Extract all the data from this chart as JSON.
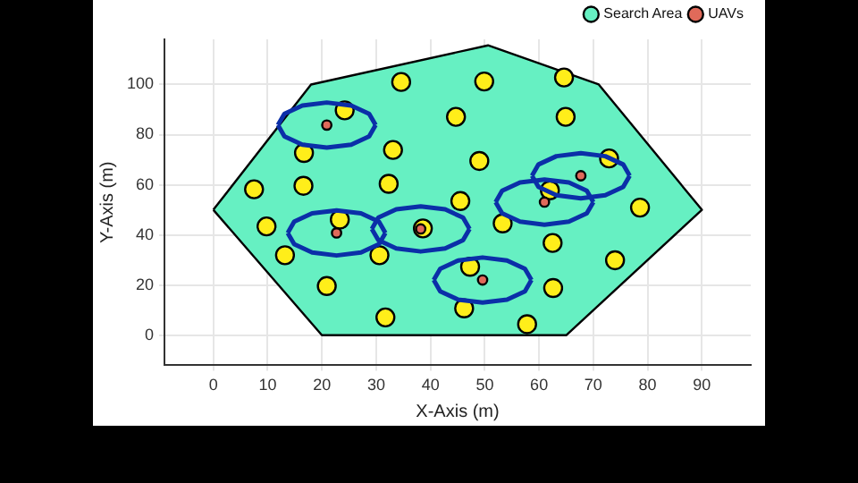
{
  "chart_data": {
    "type": "scatter",
    "xlabel": "X-Axis (m)",
    "ylabel": "Y-Axis (m)",
    "xlim": [
      -9,
      99
    ],
    "ylim": [
      -12,
      118
    ],
    "xticks": [
      0,
      10,
      20,
      30,
      40,
      50,
      60,
      70,
      80,
      90
    ],
    "yticks": [
      0,
      20,
      40,
      60,
      80,
      100
    ],
    "grid": true,
    "legend": "top right",
    "series": [
      {
        "name": "Search Area",
        "type": "area",
        "marker": "none",
        "color": "#66f0c2",
        "x": [
          0,
          20,
          65,
          90,
          71,
          50.6,
          18,
          0
        ],
        "values": [
          50,
          0,
          0,
          50,
          100,
          115.6,
          100,
          50
        ]
      },
      {
        "type": "scatter",
        "marker": "circle",
        "color": "#ffee1a",
        "x": [
          34.6,
          49.9,
          64.6,
          24.2,
          44.7,
          64.9,
          33.1,
          16.7,
          49.0,
          72.9,
          7.5,
          16.6,
          32.3,
          62.0,
          45.5,
          78.6,
          23.3,
          9.8,
          53.3,
          38.6,
          62.5,
          13.2,
          30.6,
          74.0,
          47.3,
          20.9,
          62.6,
          31.7,
          46.2,
          57.8
        ],
        "values": [
          101,
          101.2,
          102.8,
          89.7,
          87.1,
          87.1,
          73.9,
          72.7,
          69.5,
          70.5,
          58.2,
          59.6,
          60.4,
          57.8,
          53.5,
          50.9,
          46.1,
          43.4,
          44.6,
          42.6,
          36.8,
          31.9,
          31.9,
          29.9,
          27.3,
          19.6,
          18.8,
          7.1,
          10.7,
          4.4
        ]
      },
      {
        "type": "line",
        "marker": "none",
        "color": "#0b2fa8",
        "x": [
          11.9,
          13.1,
          16.4,
          20.9,
          25.4,
          28.7,
          29.9
        ],
        "values": [
          83.8,
          88.3,
          91.6,
          92.8,
          91.6,
          88.3,
          83.8
        ]
      },
      {
        "type": "line",
        "marker": "none",
        "color": "#0b2fa8",
        "x": [
          11.9,
          13.1,
          16.4,
          20.9,
          25.4,
          28.7,
          29.9
        ],
        "values": [
          83.8,
          79.3,
          76,
          74.8,
          76,
          79.3,
          83.8
        ]
      },
      {
        "type": "line",
        "marker": "none",
        "color": "#0b2fa8",
        "x": [
          58.7,
          59.9,
          63.2,
          67.7,
          72.2,
          75.5,
          76.7
        ],
        "values": [
          63.6,
          68.1,
          71.4,
          72.6,
          71.4,
          68.1,
          63.6
        ]
      },
      {
        "type": "line",
        "marker": "none",
        "color": "#0b2fa8",
        "x": [
          58.7,
          59.9,
          63.2,
          67.7,
          72.2,
          75.5,
          76.7
        ],
        "values": [
          63.6,
          59.1,
          55.8,
          54.6,
          55.8,
          59.1,
          63.6
        ]
      },
      {
        "type": "line",
        "marker": "none",
        "color": "#0b2fa8",
        "x": [
          52,
          53.2,
          56.5,
          61,
          65.5,
          68.8,
          70
        ],
        "values": [
          53.1,
          57.6,
          60.9,
          62.1,
          60.9,
          57.6,
          53.1
        ]
      },
      {
        "type": "line",
        "marker": "none",
        "color": "#0b2fa8",
        "x": [
          52,
          53.2,
          56.5,
          61,
          65.5,
          68.8,
          70
        ],
        "values": [
          53.1,
          48.6,
          45.3,
          44.1,
          45.3,
          48.6,
          53.1
        ]
      },
      {
        "type": "line",
        "marker": "none",
        "color": "#0b2fa8",
        "x": [
          13.7,
          14.9,
          18.2,
          22.7,
          27.2,
          30.5,
          31.7
        ],
        "values": [
          40.8,
          45.3,
          48.6,
          49.8,
          48.6,
          45.3,
          40.8
        ]
      },
      {
        "type": "line",
        "marker": "none",
        "color": "#0b2fa8",
        "x": [
          13.7,
          14.9,
          18.2,
          22.7,
          27.2,
          30.5,
          31.7
        ],
        "values": [
          40.8,
          36.3,
          33,
          31.8,
          33,
          36.3,
          40.8
        ]
      },
      {
        "type": "line",
        "marker": "none",
        "color": "#0b2fa8",
        "x": [
          29.2,
          30.4,
          33.7,
          38.2,
          42.7,
          46,
          47.2
        ],
        "values": [
          42.4,
          46.9,
          50.2,
          51.4,
          50.2,
          46.9,
          42.4
        ]
      },
      {
        "type": "line",
        "marker": "none",
        "color": "#0b2fa8",
        "x": [
          29.2,
          30.4,
          33.7,
          38.2,
          42.7,
          46,
          47.2
        ],
        "values": [
          42.4,
          37.9,
          34.6,
          33.4,
          34.6,
          37.9,
          42.4
        ]
      },
      {
        "type": "line",
        "marker": "none",
        "color": "#0b2fa8",
        "x": [
          40.6,
          41.8,
          45.1,
          49.6,
          54.1,
          57.4,
          58.6
        ],
        "values": [
          22,
          26.5,
          29.8,
          31,
          29.8,
          26.5,
          22
        ]
      },
      {
        "type": "line",
        "marker": "none",
        "color": "#0b2fa8",
        "x": [
          40.6,
          41.8,
          45.1,
          49.6,
          54.1,
          57.4,
          58.6
        ],
        "values": [
          22,
          17.5,
          14.2,
          13,
          14.2,
          17.5,
          22
        ]
      },
      {
        "name": "UAVs",
        "type": "scatter",
        "marker": "circle",
        "color": "#e06a5a",
        "x": [
          20.9,
          67.7,
          61.0,
          22.7,
          38.2,
          49.6
        ],
        "values": [
          83.8,
          63.6,
          53.1,
          40.8,
          42.4,
          22.0
        ]
      }
    ]
  }
}
